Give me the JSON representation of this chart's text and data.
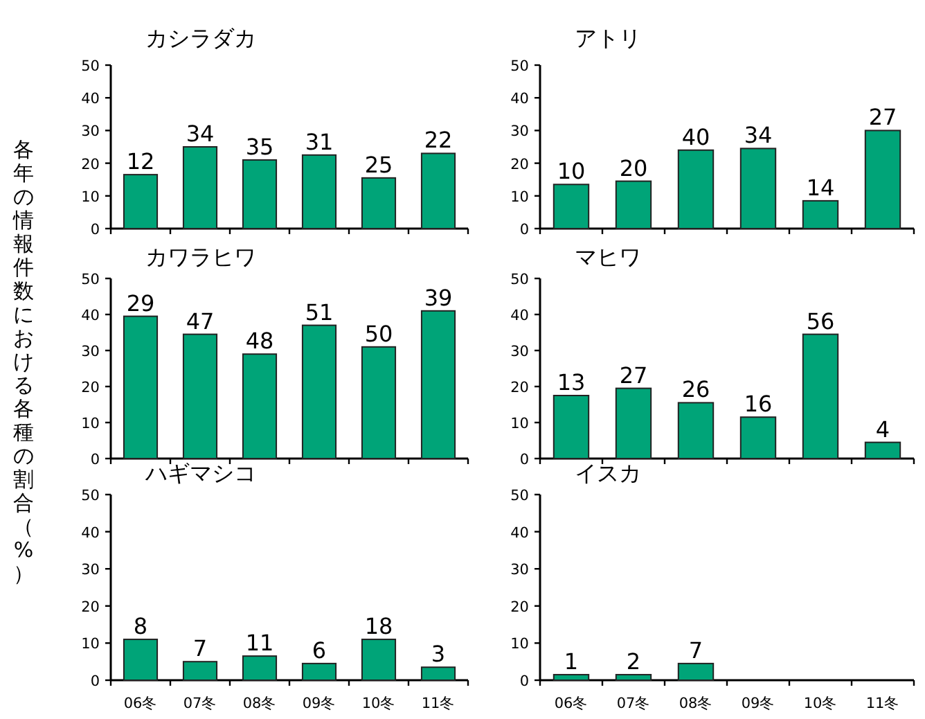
{
  "chart_data": [
    {
      "type": "bar",
      "title": "カシラダカ",
      "categories": [
        null,
        null,
        null,
        null,
        null,
        null
      ],
      "values": [
        16.5,
        25,
        21,
        22.5,
        15.5,
        23
      ],
      "annotations": [
        {
          "text": "12",
          "y": 16.5
        },
        {
          "text": "34",
          "y": 25
        },
        {
          "text": "35",
          "y": 21
        },
        {
          "text": "31",
          "y": 22.5
        },
        {
          "text": "25",
          "y": 15.5
        },
        {
          "text": "22",
          "y": 23
        }
      ],
      "color": "#00a478",
      "ylim": [
        0,
        50
      ],
      "yticks": [
        0,
        10,
        20,
        30,
        40,
        50
      ],
      "tick_labels": "y"
    },
    {
      "type": "bar",
      "title": "アトリ",
      "categories": [
        null,
        null,
        null,
        null,
        null,
        null
      ],
      "values": [
        13.5,
        14.5,
        24,
        24.5,
        8.5,
        30
      ],
      "annotations": [
        {
          "text": "10",
          "y": 13.5
        },
        {
          "text": "20",
          "y": 14.5
        },
        {
          "text": "40",
          "y": 24
        },
        {
          "text": "34",
          "y": 24.5
        },
        {
          "text": "14",
          "y": 8.5
        },
        {
          "text": "27",
          "y": 30
        }
      ],
      "color": "#00a478",
      "ylim": [
        0,
        50
      ],
      "yticks": [
        0,
        10,
        20,
        30,
        40,
        50
      ],
      "tick_labels": "y"
    },
    {
      "type": "bar",
      "title": "カワラヒワ",
      "ylabel": "各年の情報件数における各種の割合（%）",
      "categories": [
        null,
        null,
        null,
        null,
        null,
        null
      ],
      "values": [
        39.5,
        34.5,
        29,
        37,
        31,
        41
      ],
      "annotations": [
        {
          "text": "29",
          "y": 39.5
        },
        {
          "text": "47",
          "y": 34.5
        },
        {
          "text": "48",
          "y": 29
        },
        {
          "text": "51",
          "y": 37
        },
        {
          "text": "50",
          "y": 31
        },
        {
          "text": "39",
          "y": 41
        }
      ],
      "color": "#00a478",
      "ylim": [
        0,
        50
      ],
      "yticks": [
        0,
        10,
        20,
        30,
        40,
        50
      ],
      "tick_labels": "y"
    },
    {
      "type": "bar",
      "title": "マヒワ",
      "categories": [
        null,
        null,
        null,
        null,
        null,
        null
      ],
      "values": [
        17.5,
        19.5,
        15.5,
        11.5,
        34.5,
        4.5
      ],
      "annotations": [
        {
          "text": "13",
          "y": 17.5
        },
        {
          "text": "27",
          "y": 19.5
        },
        {
          "text": "26",
          "y": 15.5
        },
        {
          "text": "16",
          "y": 11.5
        },
        {
          "text": "56",
          "y": 34.5
        },
        {
          "text": "4",
          "y": 4.5
        }
      ],
      "color": "#00a478",
      "ylim": [
        0,
        50
      ],
      "yticks": [
        0,
        10,
        20,
        30,
        40,
        50
      ],
      "tick_labels": "y"
    },
    {
      "type": "bar",
      "title": "ハギマシコ",
      "categories": [
        "06冬",
        "07冬",
        "08冬",
        "09冬",
        "10冬",
        "11冬"
      ],
      "values": [
        11,
        5,
        6.5,
        4.5,
        11,
        3.5
      ],
      "annotations": [
        {
          "text": "8",
          "x": "06冬",
          "y": 11
        },
        {
          "text": "7",
          "x": "07冬",
          "y": 5
        },
        {
          "text": "11",
          "x": "08冬",
          "y": 6.5
        },
        {
          "text": "6",
          "x": "09冬",
          "y": 4.5
        },
        {
          "text": "18",
          "x": "10冬",
          "y": 11
        },
        {
          "text": "3",
          "x": "11冬",
          "y": 3.5
        }
      ],
      "color": "#00a478",
      "ylim": [
        0,
        50
      ],
      "yticks": [
        0,
        10,
        20,
        30,
        40,
        50
      ]
    },
    {
      "type": "bar",
      "title": "イスカ",
      "categories": [
        "06冬",
        "07冬",
        "08冬",
        "09冬",
        "10冬",
        "11冬"
      ],
      "values": [
        1.5,
        1.5,
        4.5,
        null,
        null,
        null
      ],
      "annotations": [
        {
          "text": "1",
          "x": "06冬",
          "y": 1.5
        },
        {
          "text": "2",
          "x": "07冬",
          "y": 1.5
        },
        {
          "text": "7",
          "x": "08冬",
          "y": 4.5
        }
      ],
      "color": "#00a478",
      "ylim": [
        0,
        50
      ],
      "yticks": [
        0,
        10,
        20,
        30,
        40,
        50
      ]
    }
  ]
}
